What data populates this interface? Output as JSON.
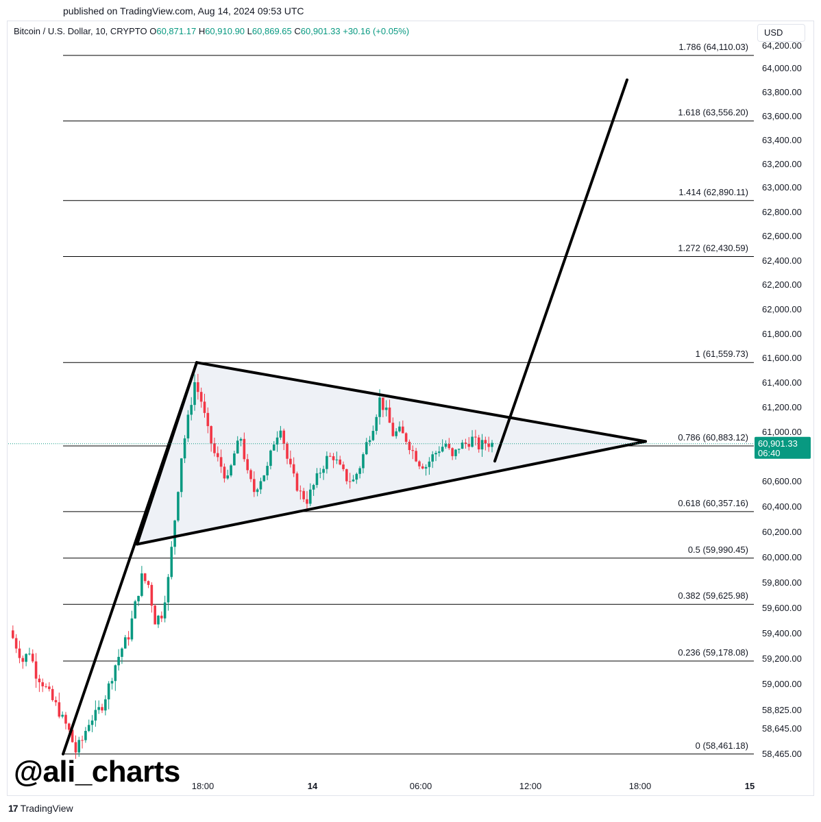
{
  "header": {
    "published": "published on TradingView.com, Aug 14, 2024 09:53 UTC"
  },
  "legend": {
    "symbol": "Bitcoin / U.S. Dollar, 10, CRYPTO",
    "o_label": "O",
    "o": "60,871.17",
    "h_label": "H",
    "h": "60,910.90",
    "l_label": "L",
    "l": "60,869.65",
    "c_label": "C",
    "c": "60,901.33",
    "change": "+30.16 (+0.05%)"
  },
  "currency_button": "USD",
  "footer": {
    "brand": "TradingView",
    "logo_glyph": "17"
  },
  "watermark": "@ali_charts",
  "colors": {
    "up": "#089981",
    "down": "#f23645",
    "price_tag": "#089981",
    "pattern_fill": "#eef1f6"
  },
  "chart_data": {
    "type": "candlestick",
    "symbol": "BTCUSD",
    "y_ticks": [
      {
        "value": 64200,
        "label": "64,200.00"
      },
      {
        "value": 64000,
        "label": "64,000.00"
      },
      {
        "value": 63800,
        "label": "63,800.00"
      },
      {
        "value": 63600,
        "label": "63,600.00"
      },
      {
        "value": 63400,
        "label": "63,400.00"
      },
      {
        "value": 63200,
        "label": "63,200.00"
      },
      {
        "value": 63000,
        "label": "63,000.00"
      },
      {
        "value": 62800,
        "label": "62,800.00"
      },
      {
        "value": 62600,
        "label": "62,600.00"
      },
      {
        "value": 62400,
        "label": "62,400.00"
      },
      {
        "value": 62200,
        "label": "62,200.00"
      },
      {
        "value": 62000,
        "label": "62,000.00"
      },
      {
        "value": 61800,
        "label": "61,800.00"
      },
      {
        "value": 61600,
        "label": "61,600.00"
      },
      {
        "value": 61400,
        "label": "61,400.00"
      },
      {
        "value": 61200,
        "label": "61,200.00"
      },
      {
        "value": 61000,
        "label": "61,000.00"
      },
      {
        "value": 60600,
        "label": "60,600.00"
      },
      {
        "value": 60400,
        "label": "60,400.00"
      },
      {
        "value": 60200,
        "label": "60,200.00"
      },
      {
        "value": 60000,
        "label": "60,000.00"
      },
      {
        "value": 59800,
        "label": "59,800.00"
      },
      {
        "value": 59600,
        "label": "59,600.00"
      },
      {
        "value": 59400,
        "label": "59,400.00"
      },
      {
        "value": 59200,
        "label": "59,200.00"
      },
      {
        "value": 59000,
        "label": "59,000.00"
      },
      {
        "value": 58825,
        "label": "58,825.00"
      },
      {
        "value": 58645,
        "label": "58,645.00"
      },
      {
        "value": 58465,
        "label": "58,465.00"
      }
    ],
    "x_ticks": [
      {
        "label": "18:00",
        "bold": false
      },
      {
        "label": "14",
        "bold": true
      },
      {
        "label": "06:00",
        "bold": false
      },
      {
        "label": "12:00",
        "bold": false
      },
      {
        "label": "18:00",
        "bold": false
      },
      {
        "label": "15",
        "bold": true
      }
    ],
    "fib_levels": [
      {
        "ratio": "1.786",
        "price": 64110.03,
        "label": "1.786 (64,110.03)"
      },
      {
        "ratio": "1.618",
        "price": 63556.2,
        "label": "1.618 (63,556.20)"
      },
      {
        "ratio": "1.414",
        "price": 62890.11,
        "label": "1.414 (62,890.11)"
      },
      {
        "ratio": "1.272",
        "price": 62430.59,
        "label": "1.272 (62,430.59)"
      },
      {
        "ratio": "1",
        "price": 61559.73,
        "label": "1 (61,559.73)"
      },
      {
        "ratio": "0.786",
        "price": 60883.12,
        "label": "0.786 (60,883.12)"
      },
      {
        "ratio": "0.618",
        "price": 60357.16,
        "label": "0.618 (60,357.16)"
      },
      {
        "ratio": "0.5",
        "price": 59990.45,
        "label": "0.5 (59,990.45)"
      },
      {
        "ratio": "0.382",
        "price": 59625.98,
        "label": "0.382 (59,625.98)"
      },
      {
        "ratio": "0.236",
        "price": 59178.08,
        "label": "0.236 (59,178.08)"
      },
      {
        "ratio": "0",
        "price": 58461.18,
        "label": "0 (58,461.18)"
      }
    ],
    "last_price": {
      "value": 60901.33,
      "label": "60,901.33",
      "countdown": "06:40"
    },
    "price_path": [
      59420,
      59300,
      59180,
      59260,
      59080,
      59010,
      58920,
      58850,
      58740,
      58620,
      58480,
      58560,
      58700,
      58780,
      58860,
      58980,
      59150,
      59280,
      59380,
      59620,
      59840,
      59780,
      59500,
      59550,
      59820,
      60300,
      60800,
      61100,
      61400,
      61250,
      61000,
      60820,
      60720,
      60600,
      60820,
      60950,
      60650,
      60520,
      60620,
      60700,
      60920,
      61050,
      60780,
      60620,
      60500,
      60450,
      60560,
      60680,
      60780,
      60800,
      60700,
      60620,
      60600,
      60720,
      60900,
      61050,
      61260,
      61150,
      60980,
      61000,
      60940,
      60840,
      60750,
      60720,
      60800,
      60860,
      60900,
      60780,
      60880,
      60900,
      60940,
      60880,
      60910,
      60900
    ]
  }
}
